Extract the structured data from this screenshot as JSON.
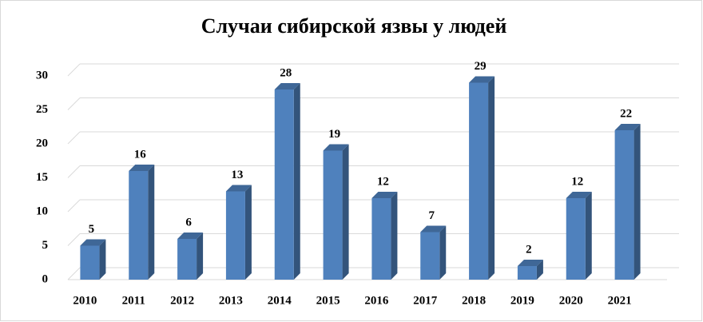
{
  "chart_data": {
    "type": "bar",
    "title": "Случаи сибирской язвы у людей",
    "categories": [
      "2010",
      "2011",
      "2012",
      "2013",
      "2014",
      "2015",
      "2016",
      "2017",
      "2018",
      "2019",
      "2020",
      "2021"
    ],
    "values": [
      5,
      16,
      6,
      13,
      28,
      19,
      12,
      7,
      29,
      2,
      12,
      22
    ],
    "color": "#4f81bd",
    "ylim": [
      0,
      30
    ],
    "yticks": [
      0,
      5,
      10,
      15,
      20,
      25,
      30
    ],
    "grid": true
  }
}
